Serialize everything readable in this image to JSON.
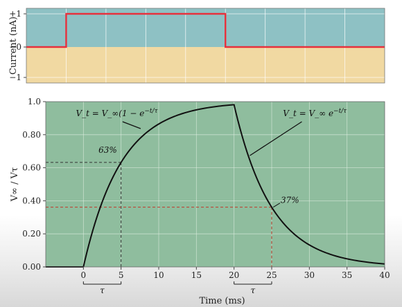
{
  "chart_data": [
    {
      "type": "line",
      "ylabel": "Current (nA)",
      "yticks": [
        "+1",
        "−0",
        "−1"
      ],
      "ylim": [
        -1,
        1
      ],
      "xlim": [
        -5,
        40
      ],
      "grid": true,
      "x": [
        -5,
        0,
        0,
        20,
        20,
        40
      ],
      "series": [
        {
          "values": [
            0,
            0,
            1,
            1,
            0,
            0
          ],
          "color": "#e8303c"
        }
      ],
      "colors": {
        "positive_band": "#8ec1c4",
        "negative_band": "#f1d9a2",
        "grid": "#ffffff"
      }
    },
    {
      "type": "line",
      "ylabel": "V∞ / Vτ",
      "xlabel": "Time (ms)",
      "xticks": [
        "0",
        "5",
        "10",
        "15",
        "20",
        "25",
        "30",
        "35",
        "40"
      ],
      "yticks": [
        "1.0",
        "0.80",
        "0.60",
        "0.40",
        "0.20",
        "0.00"
      ],
      "xlim": [
        -5,
        40
      ],
      "ylim": [
        0,
        1
      ],
      "grid": true,
      "tau_ms": 5,
      "x": [
        -5,
        0,
        2.5,
        5,
        7.5,
        10,
        12.5,
        15,
        17.5,
        20,
        22.5,
        25,
        27.5,
        30,
        32.5,
        35,
        37.5,
        40
      ],
      "series": [
        {
          "values": [
            0,
            0,
            0.39,
            0.63,
            0.78,
            0.86,
            0.92,
            0.95,
            0.97,
            0.98,
            0.59,
            0.36,
            0.22,
            0.13,
            0.08,
            0.05,
            0.03,
            0.02
          ],
          "color": "#111111"
        }
      ],
      "annotations": {
        "rise_equation": "V_t = V_∞(1 − e^(−t/τ))",
        "fall_equation": "V_t = V_∞ e^(−t/τ)",
        "rise_marker": "63%",
        "fall_marker": "37%",
        "tau_label_1": "τ",
        "tau_label_2": "τ"
      },
      "colors": {
        "plot_bg": "#8fbd9e",
        "grid": "#dfeee2",
        "rise_guide": "#333333",
        "fall_guide": "#c0392b"
      }
    }
  ]
}
